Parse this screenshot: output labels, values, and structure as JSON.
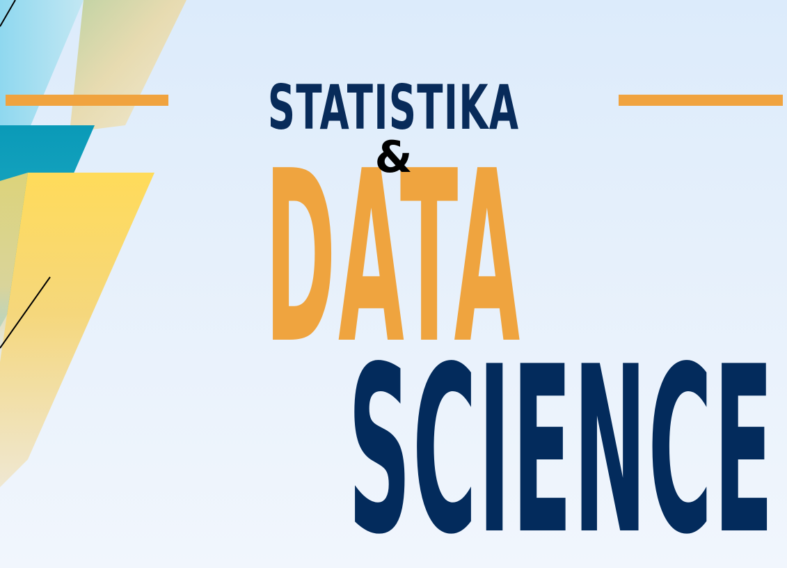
{
  "poster": {
    "title_top": "STATISTIKA",
    "ampersand": "&",
    "title_middle": "DATA",
    "title_bottom": "SCIENCE"
  },
  "colors": {
    "navy": "#032b5c",
    "orange": "#efa43f",
    "teal": "#0b9ab8",
    "yellow": "#ffd95c",
    "light_blue": "#a8ddf0",
    "background": "#e6f0fb"
  }
}
